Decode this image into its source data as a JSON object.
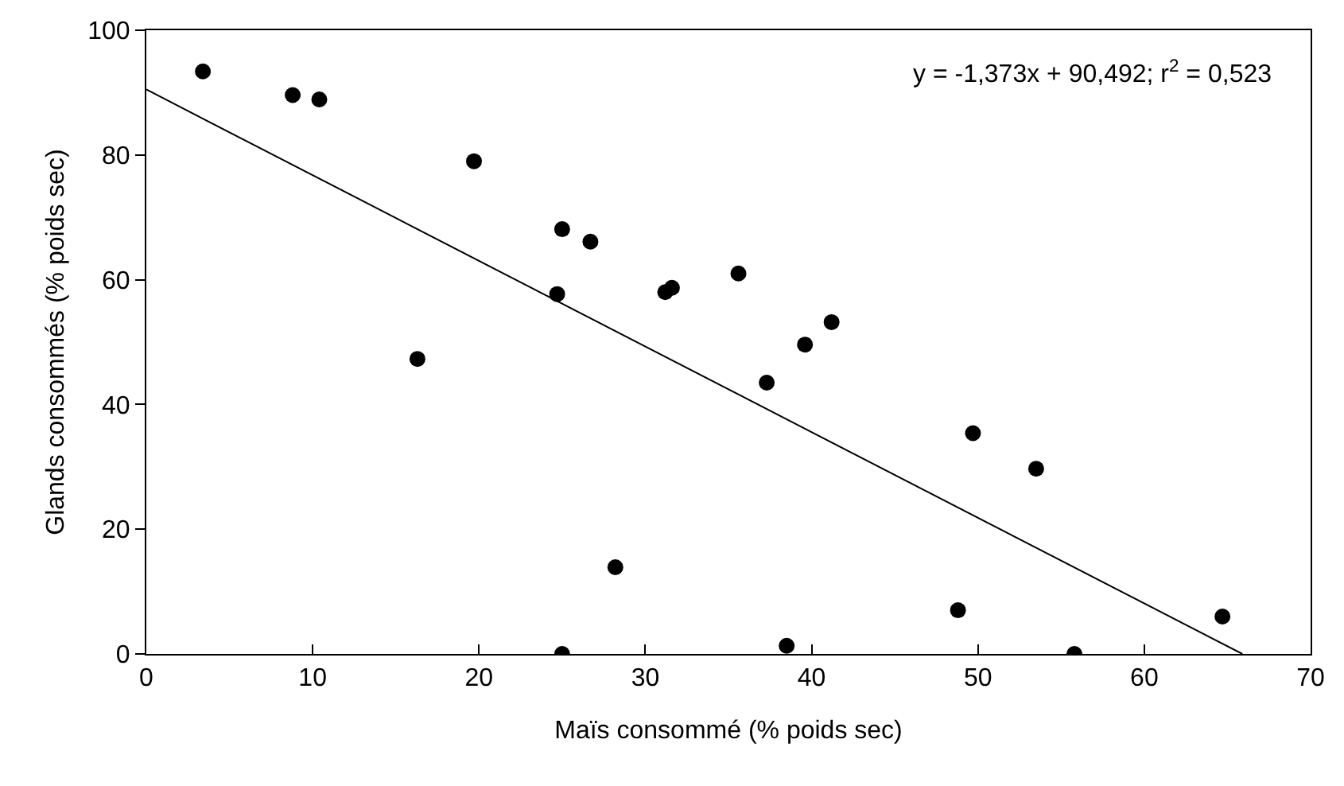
{
  "chart_data": {
    "type": "scatter",
    "xlabel": "Maïs consommé (% poids sec)",
    "ylabel": "Glands consommés (% poids sec)",
    "annotations": [
      "y = -1,373x + 90,492; r$^{2}$ = 0,523"
    ],
    "series": [
      {
        "color": "#000000",
        "marker": "circle",
        "x": [
          3.4,
          8.8,
          10.4,
          16.3,
          19.7,
          24.7,
          25.0,
          26.7,
          31.2,
          31.6,
          35.6,
          37.3,
          39.6,
          41.2,
          25.0,
          28.2,
          49.7,
          53.5,
          48.8,
          38.5,
          55.8,
          64.7
        ],
        "values": [
          93.4,
          89.6,
          88.9,
          47.3,
          79,
          57.7,
          68.1,
          66.1,
          58,
          58.7,
          61,
          43.5,
          49.6,
          53.2,
          0,
          13.9,
          35.4,
          29.7,
          7,
          1.3,
          0,
          6
        ]
      },
      {
        "type": "line",
        "color": "#000000",
        "line_style": "solid",
        "x": [
          0,
          65.9
        ],
        "values": [
          90.5,
          0
        ]
      }
    ],
    "xlim": [
      0,
      70
    ],
    "xticks": [
      0,
      10,
      20,
      30,
      40,
      50,
      60,
      70
    ],
    "ylim": [
      0,
      100
    ],
    "yticks": [
      0,
      20,
      40,
      60,
      80,
      100
    ],
    "grid": false
  }
}
